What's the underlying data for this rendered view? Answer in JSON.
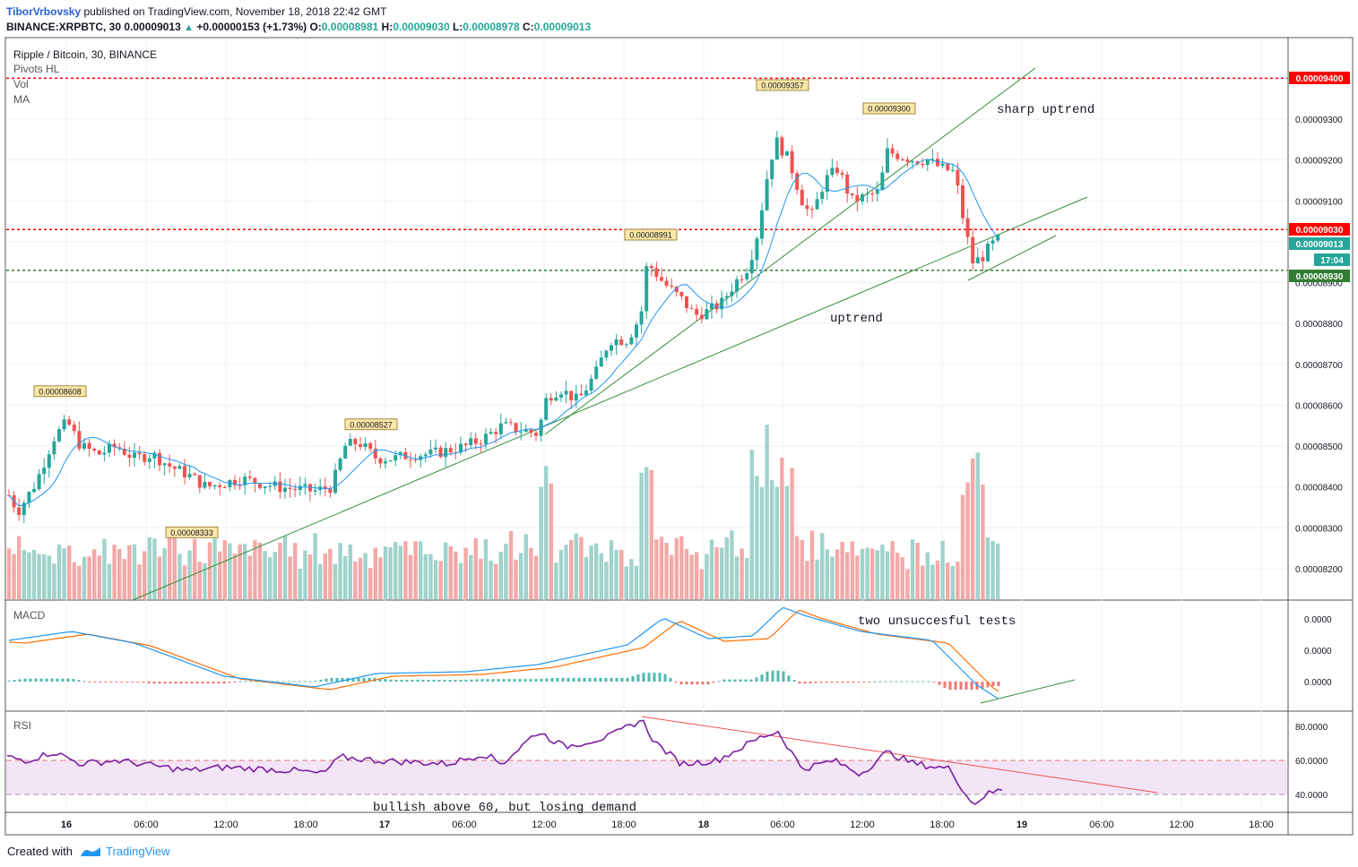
{
  "header": {
    "author": "TiborVrbovsky",
    "published": "published on TradingView.com, November 18, 2018 22:42 GMT",
    "symbol_line": "BINANCE:XRPBTC, 30",
    "last": "0.00009013",
    "change": "+0.00000153 (+1.73%)",
    "o_label": "O:",
    "o_val": "0.00008981",
    "h_label": "H:",
    "h_val": "0.00009030",
    "l_label": "L:",
    "l_val": "0.00008978",
    "c_label": "C:",
    "c_val": "0.00009013"
  },
  "legend": {
    "title": "Ripple / Bitcoin, 30, BINANCE",
    "items": [
      "Pivots HL",
      "Vol",
      "MA"
    ]
  },
  "footer": {
    "created_with": "Created with",
    "brand": "TradingView"
  },
  "colors": {
    "up": "#26a69a",
    "down": "#ef5350",
    "vol_up": "#9fd3cc",
    "vol_down": "#f3a9a8",
    "ma": "#2196f3",
    "pivot_box": "#fbe7a7",
    "resistance": "#ff0000",
    "support": "#2e7d32",
    "trendline": "#388e3c",
    "macd_line": "#2196f3",
    "signal_line": "#ff6d00",
    "rsi_line": "#7b1fa2",
    "rsi_band": "#f3e5f5"
  },
  "chart_data": [
    {
      "type": "candlestick",
      "title": "Ripple / Bitcoin, 30, BINANCE",
      "y_axis": [
        "0.00009300",
        "0.00009200",
        "0.00009100",
        "0.00009000",
        "0.00008900",
        "0.00008800",
        "0.00008700",
        "0.00008600",
        "0.00008500",
        "0.00008400",
        "0.00008300",
        "0.00008200"
      ],
      "ylim": [
        8.12e-05,
        9.44e-05
      ],
      "x_ticks": [
        "16",
        "06:00",
        "12:00",
        "18:00",
        "17",
        "06:00",
        "12:00",
        "18:00",
        "18",
        "06:00",
        "12:00",
        "18:00",
        "19",
        "06:00",
        "12:00",
        "18:00"
      ],
      "pivots": [
        {
          "label": "0.00008608",
          "value": 8.608e-05
        },
        {
          "label": "0.00008333",
          "value": 8.333e-05
        },
        {
          "label": "0.00008527",
          "value": 8.527e-05
        },
        {
          "label": "0.00008991",
          "value": 8.991e-05
        },
        {
          "label": "0.00009357",
          "value": 9.357e-05
        },
        {
          "label": "0.00009300",
          "value": 9.3e-05
        }
      ],
      "price_tags": [
        {
          "label": "0.00009400",
          "value": 9.4e-05,
          "color": "#ff0000"
        },
        {
          "label": "0.00009030",
          "value": 9.03e-05,
          "color": "#ff0000"
        },
        {
          "label": "0.00009013",
          "value": 9.013e-05,
          "color": "#26a69a"
        },
        {
          "label": "17:04",
          "value": 8.98e-05,
          "color": "#26a69a"
        },
        {
          "label": "0.00008930",
          "value": 8.93e-05,
          "color": "#2e7d32"
        }
      ],
      "levels": [
        {
          "value": 9.4e-05,
          "style": "resistance"
        },
        {
          "value": 9.03e-05,
          "style": "resistance"
        },
        {
          "value": 8.93e-05,
          "style": "support"
        }
      ],
      "annotations": [
        "sharp uptrend",
        "uptrend"
      ],
      "series": [
        {
          "name": "Vol",
          "kind": "volume"
        },
        {
          "name": "MA",
          "kind": "moving-average"
        }
      ]
    },
    {
      "type": "line",
      "title": "MACD",
      "y_axis": [
        "0.0000",
        "0.0000",
        "0.0000"
      ],
      "annotations": [
        "two unsuccesful tests"
      ],
      "series": [
        {
          "kind": "macd"
        },
        {
          "kind": "signal"
        },
        {
          "kind": "histogram"
        }
      ]
    },
    {
      "type": "line",
      "title": "RSI",
      "y_axis": [
        "80.0000",
        "60.0000",
        "40.0000"
      ],
      "ylim": [
        30,
        85
      ],
      "band": [
        40,
        60
      ],
      "annotations": [
        "bullish above 60, but losing demand"
      ],
      "series": [
        {
          "kind": "rsi"
        }
      ]
    }
  ]
}
